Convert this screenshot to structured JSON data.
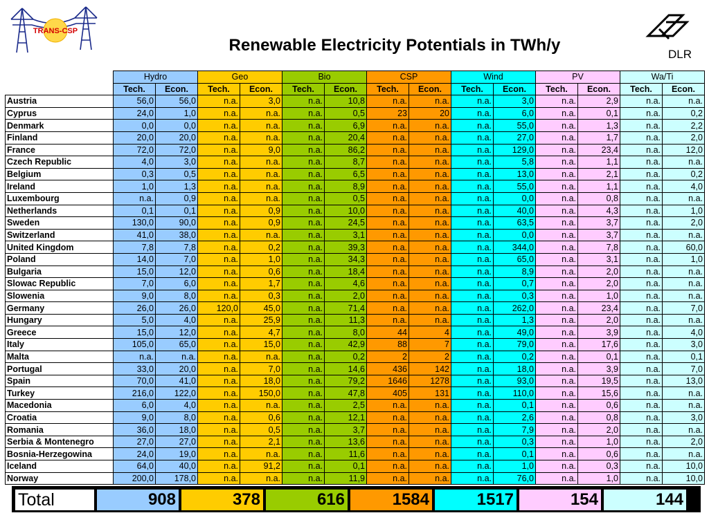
{
  "header": {
    "title": "Renewable Electricity Potentials in TWh/y",
    "logo_left_text": "TRANS-CSP",
    "logo_right_text": "DLR"
  },
  "colors": {
    "hydro": "#99ccff",
    "geo": "#ffcc00",
    "bio": "#99cc00",
    "csp": "#ff9900",
    "wind": "#00ffff",
    "pv": "#ffccff",
    "wati": "#ccffff"
  },
  "table": {
    "groups": [
      "Hydro",
      "Geo",
      "Bio",
      "CSP",
      "Wind",
      "PV",
      "Wa/Ti"
    ],
    "subheaders": [
      "Tech.",
      "Econ.",
      "Tech.",
      "Econ.",
      "Tech.",
      "Econ.",
      "Tech.",
      "Econ.",
      "Tech.",
      "Econ.",
      "Tech.",
      "Econ.",
      "Tech.",
      "Econ."
    ],
    "rows": [
      [
        "Austria",
        "56,0",
        "56,0",
        "n.a.",
        "3,0",
        "n.a.",
        "10,8",
        "n.a.",
        "n.a.",
        "n.a.",
        "3,0",
        "n.a.",
        "2,9",
        "n.a.",
        "n.a."
      ],
      [
        "Cyprus",
        "24,0",
        "1,0",
        "n.a.",
        "n.a.",
        "n.a.",
        "0,5",
        "23",
        "20",
        "n.a.",
        "6,0",
        "n.a.",
        "0,1",
        "n.a.",
        "0,2"
      ],
      [
        "Denmark",
        "0,0",
        "0,0",
        "n.a.",
        "n.a.",
        "n.a.",
        "6,9",
        "n.a.",
        "n.a.",
        "n.a.",
        "55,0",
        "n.a.",
        "1,3",
        "n.a.",
        "2,2"
      ],
      [
        "Finland",
        "20,0",
        "20,0",
        "n.a.",
        "n.a.",
        "n.a.",
        "20,4",
        "n.a.",
        "n.a.",
        "n.a.",
        "27,0",
        "n.a.",
        "1,7",
        "n.a.",
        "2,0"
      ],
      [
        "France",
        "72,0",
        "72,0",
        "n.a.",
        "9,0",
        "n.a.",
        "86,2",
        "n.a.",
        "n.a.",
        "n.a.",
        "129,0",
        "n.a.",
        "23,4",
        "n.a.",
        "12,0"
      ],
      [
        "Czech Republic",
        "4,0",
        "3,0",
        "n.a.",
        "n.a.",
        "n.a.",
        "8,7",
        "n.a.",
        "n.a.",
        "n.a.",
        "5,8",
        "n.a.",
        "1,1",
        "n.a.",
        "n.a."
      ],
      [
        "Belgium",
        "0,3",
        "0,5",
        "n.a.",
        "n.a.",
        "n.a.",
        "6,5",
        "n.a.",
        "n.a.",
        "n.a.",
        "13,0",
        "n.a.",
        "2,1",
        "n.a.",
        "0,2"
      ],
      [
        "Ireland",
        "1,0",
        "1,3",
        "n.a.",
        "n.a.",
        "n.a.",
        "8,9",
        "n.a.",
        "n.a.",
        "n.a.",
        "55,0",
        "n.a.",
        "1,1",
        "n.a.",
        "4,0"
      ],
      [
        "Luxembourg",
        "n.a.",
        "0,9",
        "n.a.",
        "n.a.",
        "n.a.",
        "0,5",
        "n.a.",
        "n.a.",
        "n.a.",
        "0,0",
        "n.a.",
        "0,8",
        "n.a.",
        "n.a."
      ],
      [
        "Netherlands",
        "0,1",
        "0,1",
        "n.a.",
        "0,9",
        "n.a.",
        "10,0",
        "n.a.",
        "n.a.",
        "n.a.",
        "40,0",
        "n.a.",
        "4,3",
        "n.a.",
        "1,0"
      ],
      [
        "Sweden",
        "130,0",
        "90,0",
        "n.a.",
        "0,9",
        "n.a.",
        "24,5",
        "n.a.",
        "n.a.",
        "n.a.",
        "63,5",
        "n.a.",
        "3,7",
        "n.a.",
        "2,0"
      ],
      [
        "Switzerland",
        "41,0",
        "38,0",
        "n.a.",
        "n.a.",
        "n.a.",
        "3,1",
        "n.a.",
        "n.a.",
        "n.a.",
        "0,0",
        "n.a.",
        "3,7",
        "n.a.",
        "n.a."
      ],
      [
        "United Kingdom",
        "7,8",
        "7,8",
        "n.a.",
        "0,2",
        "n.a.",
        "39,3",
        "n.a.",
        "n.a.",
        "n.a.",
        "344,0",
        "n.a.",
        "7,8",
        "n.a.",
        "60,0"
      ],
      [
        "Poland",
        "14,0",
        "7,0",
        "n.a.",
        "1,0",
        "n.a.",
        "34,3",
        "n.a.",
        "n.a.",
        "n.a.",
        "65,0",
        "n.a.",
        "3,1",
        "n.a.",
        "1,0"
      ],
      [
        "Bulgaria",
        "15,0",
        "12,0",
        "n.a.",
        "0,6",
        "n.a.",
        "18,4",
        "n.a.",
        "n.a.",
        "n.a.",
        "8,9",
        "n.a.",
        "2,0",
        "n.a.",
        "n.a."
      ],
      [
        "Slowac Republic",
        "7,0",
        "6,0",
        "n.a.",
        "1,7",
        "n.a.",
        "4,6",
        "n.a.",
        "n.a.",
        "n.a.",
        "0,7",
        "n.a.",
        "2,0",
        "n.a.",
        "n.a."
      ],
      [
        "Slowenia",
        "9,0",
        "8,0",
        "n.a.",
        "0,3",
        "n.a.",
        "2,0",
        "n.a.",
        "n.a.",
        "n.a.",
        "0,3",
        "n.a.",
        "1,0",
        "n.a.",
        "n.a."
      ],
      [
        "Germany",
        "26,0",
        "26,0",
        "120,0",
        "45,0",
        "n.a.",
        "71,4",
        "n.a.",
        "n.a.",
        "n.a.",
        "262,0",
        "n.a.",
        "23,4",
        "n.a.",
        "7,0"
      ],
      [
        "Hungary",
        "5,0",
        "4,0",
        "n.a.",
        "25,9",
        "n.a.",
        "11,3",
        "n.a.",
        "n.a.",
        "n.a.",
        "1,3",
        "n.a.",
        "2,0",
        "n.a.",
        "n.a."
      ],
      [
        "Greece",
        "15,0",
        "12,0",
        "n.a.",
        "4,7",
        "n.a.",
        "8,0",
        "44",
        "4",
        "n.a.",
        "49,0",
        "n.a.",
        "3,9",
        "n.a.",
        "4,0"
      ],
      [
        "Italy",
        "105,0",
        "65,0",
        "n.a.",
        "15,0",
        "n.a.",
        "42,9",
        "88",
        "7",
        "n.a.",
        "79,0",
        "n.a.",
        "17,6",
        "n.a.",
        "3,0"
      ],
      [
        "Malta",
        "n.a.",
        "n.a.",
        "n.a.",
        "n.a.",
        "n.a.",
        "0,2",
        "2",
        "2",
        "n.a.",
        "0,2",
        "n.a.",
        "0,1",
        "n.a.",
        "0,1"
      ],
      [
        "Portugal",
        "33,0",
        "20,0",
        "n.a.",
        "7,0",
        "n.a.",
        "14,6",
        "436",
        "142",
        "n.a.",
        "18,0",
        "n.a.",
        "3,9",
        "n.a.",
        "7,0"
      ],
      [
        "Spain",
        "70,0",
        "41,0",
        "n.a.",
        "18,0",
        "n.a.",
        "79,2",
        "1646",
        "1278",
        "n.a.",
        "93,0",
        "n.a.",
        "19,5",
        "n.a.",
        "13,0"
      ],
      [
        "Turkey",
        "216,0",
        "122,0",
        "n.a.",
        "150,0",
        "n.a.",
        "47,8",
        "405",
        "131",
        "n.a.",
        "110,0",
        "n.a.",
        "15,6",
        "n.a.",
        "n.a."
      ],
      [
        "Macedonia",
        "6,0",
        "4,0",
        "n.a.",
        "n.a.",
        "n.a.",
        "2,5",
        "n.a.",
        "n.a.",
        "n.a.",
        "0,1",
        "n.a.",
        "0,6",
        "n.a.",
        "n.a."
      ],
      [
        "Croatia",
        "9,0",
        "8,0",
        "n.a.",
        "0,6",
        "n.a.",
        "12,1",
        "n.a.",
        "n.a.",
        "n.a.",
        "2,6",
        "n.a.",
        "0,8",
        "n.a.",
        "3,0"
      ],
      [
        "Romania",
        "36,0",
        "18,0",
        "n.a.",
        "0,5",
        "n.a.",
        "3,7",
        "n.a.",
        "n.a.",
        "n.a.",
        "7,9",
        "n.a.",
        "2,0",
        "n.a.",
        "n.a."
      ],
      [
        "Serbia & Montenegro",
        "27,0",
        "27,0",
        "n.a.",
        "2,1",
        "n.a.",
        "13,6",
        "n.a.",
        "n.a.",
        "n.a.",
        "0,3",
        "n.a.",
        "1,0",
        "n.a.",
        "2,0"
      ],
      [
        "Bosnia-Herzegowina",
        "24,0",
        "19,0",
        "n.a.",
        "n.a.",
        "n.a.",
        "11,6",
        "n.a.",
        "n.a.",
        "n.a.",
        "0,1",
        "n.a.",
        "0,6",
        "n.a.",
        "n.a."
      ],
      [
        "Iceland",
        "64,0",
        "40,0",
        "n.a.",
        "91,2",
        "n.a.",
        "0,1",
        "n.a.",
        "n.a.",
        "n.a.",
        "1,0",
        "n.a.",
        "0,3",
        "n.a.",
        "10,0"
      ],
      [
        "Norway",
        "200,0",
        "178,0",
        "n.a.",
        "n.a.",
        "n.a.",
        "11,9",
        "n.a.",
        "n.a.",
        "n.a.",
        "76,0",
        "n.a.",
        "1,0",
        "n.a.",
        "10,0"
      ]
    ]
  },
  "totals": {
    "label": "Total",
    "values": [
      "908",
      "378",
      "616",
      "1584",
      "1517",
      "154",
      "144"
    ]
  }
}
